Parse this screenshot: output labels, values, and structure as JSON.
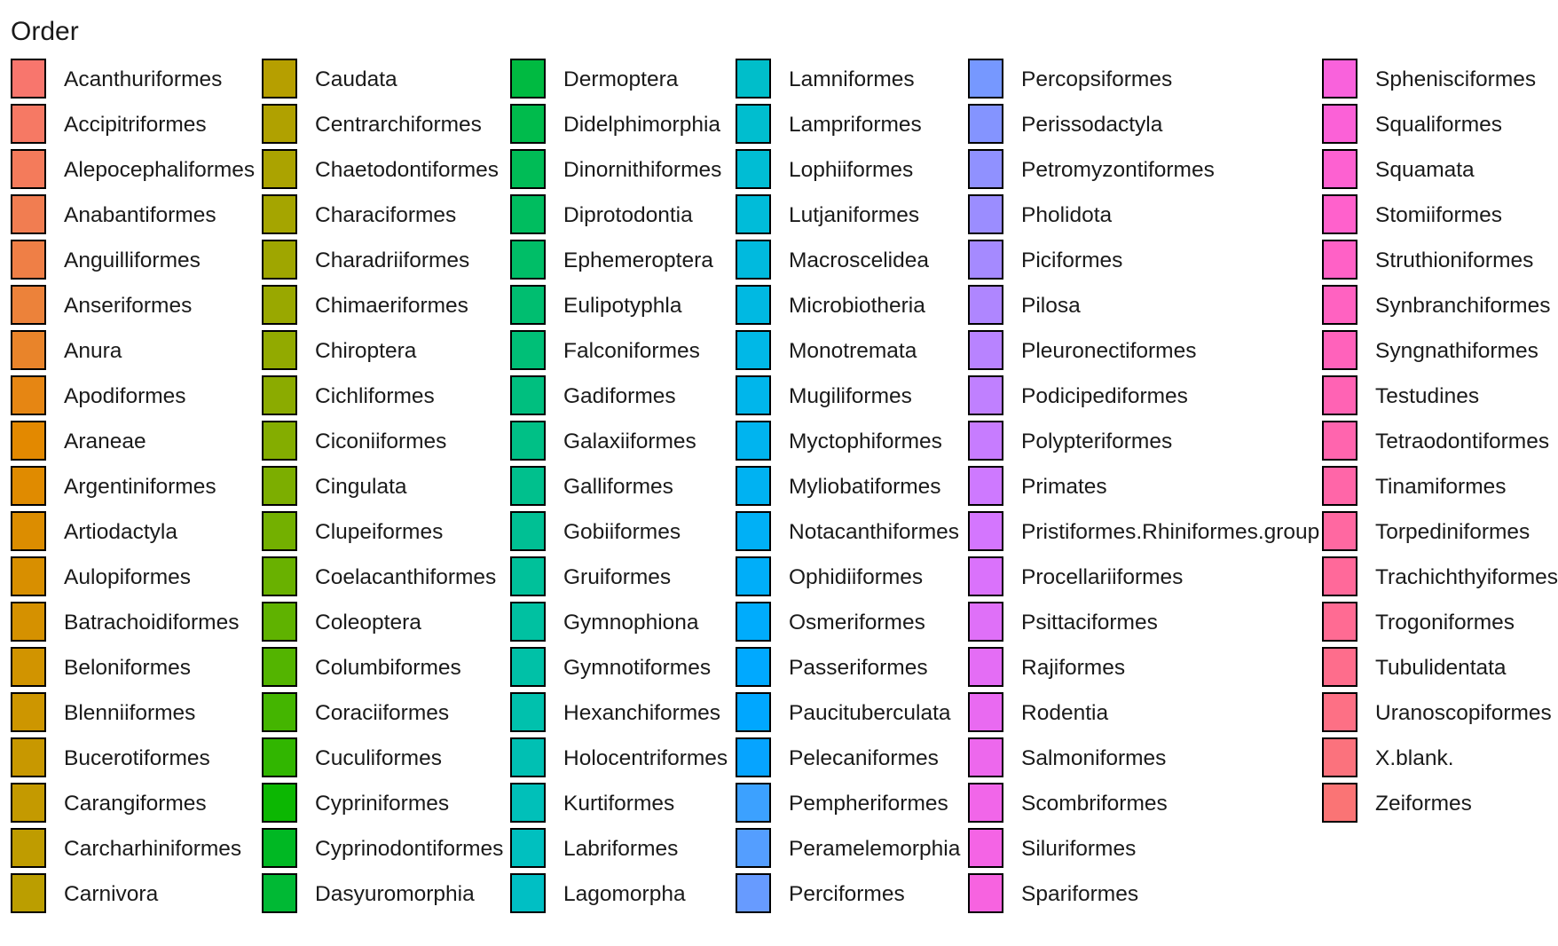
{
  "chart_data": {
    "type": "legend",
    "title": "Order",
    "entries": [
      "Acanthuriformes",
      "Accipitriformes",
      "Alepocephaliformes",
      "Anabantiformes",
      "Anguilliformes",
      "Anseriformes",
      "Anura",
      "Apodiformes",
      "Araneae",
      "Argentiniformes",
      "Artiodactyla",
      "Aulopiformes",
      "Batrachoidiformes",
      "Beloniformes",
      "Blenniiformes",
      "Bucerotiformes",
      "Carangiformes",
      "Carcharhiniformes",
      "Carnivora",
      "Caudata",
      "Centrarchiformes",
      "Chaetodontiformes",
      "Characiformes",
      "Charadriiformes",
      "Chimaeriformes",
      "Chiroptera",
      "Cichliformes",
      "Ciconiiformes",
      "Cingulata",
      "Clupeiformes",
      "Coelacanthiformes",
      "Coleoptera",
      "Columbiformes",
      "Coraciiformes",
      "Cuculiformes",
      "Cypriniformes",
      "Cyprinodontiformes",
      "Dasyuromorphia",
      "Dermoptera",
      "Didelphimorphia",
      "Dinornithiformes",
      "Diprotodontia",
      "Ephemeroptera",
      "Eulipotyphla",
      "Falconiformes",
      "Gadiformes",
      "Galaxiiformes",
      "Galliformes",
      "Gobiiformes",
      "Gruiformes",
      "Gymnophiona",
      "Gymnotiformes",
      "Hexanchiformes",
      "Holocentriformes",
      "Kurtiformes",
      "Labriformes",
      "Lagomorpha",
      "Lamniformes",
      "Lampriformes",
      "Lophiiformes",
      "Lutjaniformes",
      "Macroscelidea",
      "Microbiotheria",
      "Monotremata",
      "Mugiliformes",
      "Myctophiformes",
      "Myliobatiformes",
      "Notacanthiformes",
      "Ophidiiformes",
      "Osmeriformes",
      "Passeriformes",
      "Paucituberculata",
      "Pelecaniformes",
      "Pempheriformes",
      "Peramelemorphia",
      "Perciformes",
      "Percopsiformes",
      "Perissodactyla",
      "Petromyzontiformes",
      "Pholidota",
      "Piciformes",
      "Pilosa",
      "Pleuronectiformes",
      "Podicipediformes",
      "Polypteriformes",
      "Primates",
      "Pristiformes.Rhiniformes.group",
      "Procellariiformes",
      "Psittaciformes",
      "Rajiformes",
      "Rodentia",
      "Salmoniformes",
      "Scombriformes",
      "Siluriformes",
      "Spariformes",
      "Sphenisciformes",
      "Squaliformes",
      "Squamata",
      "Stomiiformes",
      "Struthioniformes",
      "Synbranchiformes",
      "Syngnathiformes",
      "Testudines",
      "Tetraodontiformes",
      "Tinamiformes",
      "Torpediniformes",
      "Trachichthyiformes",
      "Trogoniformes",
      "Tubulidentata",
      "Uranoscopiformes",
      "X.blank.",
      "Zeiformes"
    ],
    "columns": 6,
    "rows_per_column": 19,
    "palette": "evenly spaced hues starting at red (#F8766D), through orange, olive, green, teal, cyan, blue, violet, magenta, back to pink-red",
    "key_border": "#000000"
  }
}
